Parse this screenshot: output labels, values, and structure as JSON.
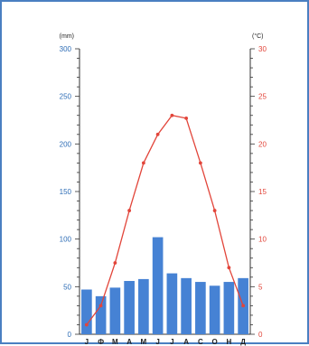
{
  "chart_data": {
    "type": "bar",
    "title": "",
    "xlabel": "",
    "categories": [
      "J",
      "Ф",
      "М",
      "А",
      "М",
      "J",
      "J",
      "А",
      "С",
      "О",
      "Н",
      "Д"
    ],
    "left_axis": {
      "unit": "(mm)",
      "ylim": [
        0,
        300
      ],
      "ticks": [
        0,
        50,
        100,
        150,
        200,
        250,
        300
      ],
      "color": "#2e6db6"
    },
    "right_axis": {
      "unit": "(°C)",
      "ylim": [
        0,
        30
      ],
      "ticks": [
        0,
        5,
        10,
        15,
        20,
        25,
        30
      ],
      "color": "#e2453a"
    },
    "series": [
      {
        "type": "bar",
        "axis": "left",
        "color": "#4682d4",
        "values": [
          47,
          40,
          49,
          56,
          58,
          102,
          64,
          59,
          55,
          51,
          55,
          59
        ]
      },
      {
        "type": "line",
        "axis": "right",
        "color": "#e2453a",
        "values": [
          1,
          3,
          7.5,
          13,
          18,
          21,
          23,
          22.7,
          18,
          13,
          7,
          3
        ]
      }
    ],
    "grid": false,
    "legend": "none"
  }
}
